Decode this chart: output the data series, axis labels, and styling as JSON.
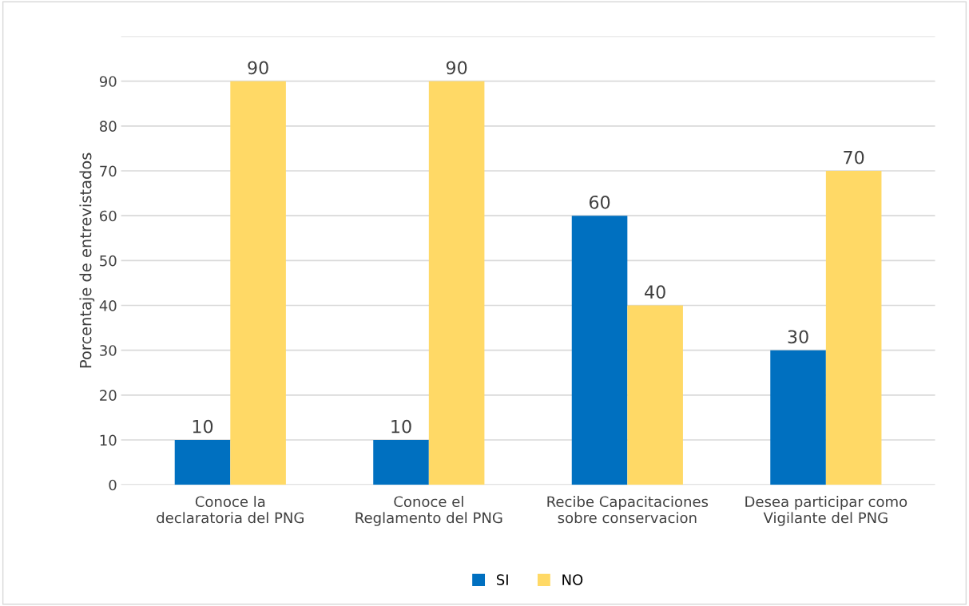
{
  "chart_data": {
    "type": "bar",
    "ylabel": "Porcentaje de entrevistados",
    "categories": [
      "Conoce la declaratoria del PNG",
      "Conoce el Reglamento del PNG",
      "Recibe Capacitaciones sobre conservacion",
      "Desea participar como Vigilante del PNG"
    ],
    "series": [
      {
        "name": "SI",
        "color": "#0070c0",
        "values": [
          10,
          10,
          60,
          30
        ]
      },
      {
        "name": "NO",
        "color": "#ffd966",
        "values": [
          90,
          90,
          40,
          70
        ]
      }
    ],
    "ylim": [
      0,
      100
    ],
    "yticks": [
      0,
      10,
      20,
      30,
      40,
      50,
      60,
      70,
      80,
      90,
      {
        "value": 100,
        "label": null
      }
    ],
    "grid": "y",
    "legend": "bottom",
    "data_labels": true
  }
}
